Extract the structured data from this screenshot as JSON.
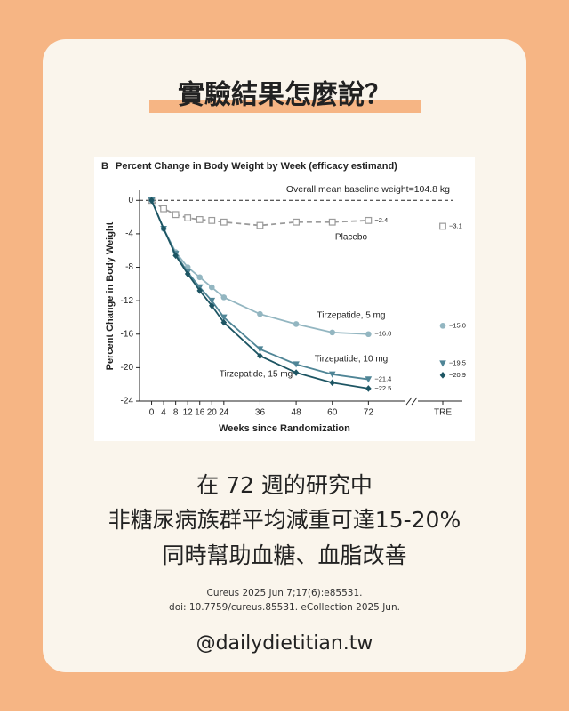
{
  "header": {
    "title": "實驗結果怎麼說？"
  },
  "chart_data": {
    "type": "line",
    "panel": "B",
    "title": "Percent Change in Body Weight by Week (efficacy estimand)",
    "annotation": "Overall mean baseline weight=104.8 kg",
    "xlabel": "Weeks since Randomization",
    "ylabel": "Percent Change in Body Weight",
    "x": [
      0,
      4,
      8,
      12,
      16,
      20,
      24,
      36,
      48,
      60,
      72
    ],
    "xlim": [
      -4,
      84
    ],
    "xticks": [
      0,
      4,
      8,
      12,
      16,
      20,
      24,
      36,
      48,
      60,
      72
    ],
    "ylim": [
      -24,
      1.2
    ],
    "yticks": [
      0,
      -4,
      -8,
      -12,
      -16,
      -20,
      -24
    ],
    "tre_category": "TRE",
    "series": [
      {
        "name": "Placebo",
        "color": "#9b9b9b",
        "dashed": true,
        "marker": "square",
        "values": [
          0,
          -1.0,
          -1.7,
          -2.1,
          -2.3,
          -2.4,
          -2.6,
          -3.0,
          -2.6,
          -2.6,
          -2.4
        ],
        "end_label": "−2.4",
        "tre_value": -3.1,
        "tre_label": "−3.1"
      },
      {
        "name": "Tirzepatide, 5 mg",
        "color": "#93b6c1",
        "marker": "circle",
        "values": [
          0,
          -3.4,
          -6.2,
          -8.0,
          -9.2,
          -10.4,
          -11.6,
          -13.6,
          -14.8,
          -15.8,
          -16.0
        ],
        "end_label": "−16.0",
        "tre_value": -15.0,
        "tre_label": "−15.0"
      },
      {
        "name": "Tirzepatide, 10 mg",
        "color": "#4f8596",
        "marker": "triangle",
        "values": [
          0,
          -3.4,
          -6.4,
          -8.6,
          -10.4,
          -12.0,
          -14.0,
          -17.8,
          -19.6,
          -20.8,
          -21.4
        ],
        "end_label": "−21.4",
        "tre_value": -19.5,
        "tre_label": "−19.5"
      },
      {
        "name": "Tirzepatide, 15 mg",
        "color": "#1d5563",
        "marker": "diamond",
        "values": [
          0,
          -3.4,
          -6.6,
          -8.8,
          -10.8,
          -12.6,
          -14.6,
          -18.6,
          -20.6,
          -21.8,
          -22.5
        ],
        "end_label": "−22.5",
        "tre_value": -20.9,
        "tre_label": "−20.9"
      }
    ]
  },
  "body": {
    "lines": [
      "在 72 週的研究中",
      "非糖尿病族群平均減重可達15-20%",
      "同時幫助血糖、血脂改善"
    ]
  },
  "citation": {
    "lines": [
      "Cureus 2025 Jun 7;17(6):e85531.",
      "doi: 10.7759/cureus.85531. eCollection 2025 Jun."
    ]
  },
  "footer": {
    "handle": "@dailydietitian.tw"
  }
}
